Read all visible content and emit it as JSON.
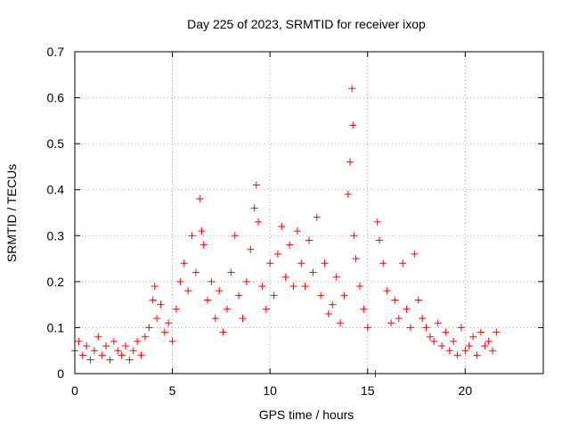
{
  "chart_data": {
    "type": "scatter",
    "title": "Day 225 of 2023, SRMTID for receiver ixop",
    "xlabel": "GPS time / hours",
    "ylabel": "SRMTID / TECUs",
    "xlim": [
      0,
      24
    ],
    "ylim": [
      0,
      0.7
    ],
    "xticks": [
      0,
      5,
      10,
      15,
      20
    ],
    "yticks": [
      0,
      0.1,
      0.2,
      0.3,
      0.4,
      0.5,
      0.6,
      0.7
    ],
    "marker": "+",
    "grid": true,
    "colors": {
      "points": "#ff0000",
      "grid": "#a0a0a0",
      "axes": "#000000"
    },
    "series": [
      {
        "name": "SRMTID",
        "x": [
          0.0,
          0.2,
          0.4,
          0.6,
          0.8,
          1.0,
          1.2,
          1.4,
          1.6,
          1.8,
          2.0,
          2.2,
          2.4,
          2.6,
          2.8,
          3.0,
          3.2,
          3.4,
          3.6,
          3.8,
          4.0,
          4.1,
          4.2,
          4.4,
          4.6,
          4.8,
          5.0,
          5.2,
          5.4,
          5.6,
          5.8,
          6.0,
          6.2,
          6.4,
          6.5,
          6.6,
          6.8,
          7.0,
          7.2,
          7.4,
          7.6,
          7.8,
          8.0,
          8.2,
          8.4,
          8.6,
          8.8,
          9.0,
          9.2,
          9.3,
          9.4,
          9.6,
          9.8,
          10.0,
          10.2,
          10.4,
          10.6,
          10.8,
          11.0,
          11.2,
          11.4,
          11.6,
          11.8,
          12.0,
          12.2,
          12.4,
          12.6,
          12.8,
          13.0,
          13.2,
          13.4,
          13.6,
          13.8,
          14.0,
          14.1,
          14.2,
          14.25,
          14.3,
          14.4,
          14.6,
          14.8,
          15.0,
          15.4,
          15.5,
          15.6,
          15.8,
          16.0,
          16.2,
          16.4,
          16.6,
          16.8,
          17.0,
          17.2,
          17.4,
          17.6,
          17.8,
          18.0,
          18.2,
          18.4,
          18.6,
          18.8,
          19.0,
          19.2,
          19.4,
          19.6,
          19.8,
          20.0,
          20.2,
          20.4,
          20.6,
          20.8,
          21.0,
          21.2,
          21.4,
          21.6
        ],
        "y": [
          0.05,
          0.07,
          0.04,
          0.06,
          0.03,
          0.05,
          0.08,
          0.04,
          0.06,
          0.03,
          0.07,
          0.05,
          0.04,
          0.06,
          0.03,
          0.05,
          0.07,
          0.04,
          0.08,
          0.1,
          0.16,
          0.19,
          0.12,
          0.15,
          0.09,
          0.11,
          0.07,
          0.14,
          0.2,
          0.24,
          0.18,
          0.3,
          0.22,
          0.38,
          0.31,
          0.28,
          0.16,
          0.2,
          0.12,
          0.18,
          0.09,
          0.14,
          0.22,
          0.3,
          0.17,
          0.12,
          0.2,
          0.27,
          0.36,
          0.41,
          0.33,
          0.19,
          0.14,
          0.24,
          0.17,
          0.26,
          0.32,
          0.21,
          0.28,
          0.19,
          0.31,
          0.24,
          0.19,
          0.29,
          0.22,
          0.34,
          0.17,
          0.24,
          0.13,
          0.15,
          0.21,
          0.11,
          0.17,
          0.39,
          0.46,
          0.62,
          0.54,
          0.3,
          0.25,
          0.19,
          0.14,
          0.1,
          0.0,
          0.33,
          0.29,
          0.24,
          0.18,
          0.11,
          0.16,
          0.12,
          0.24,
          0.14,
          0.1,
          0.26,
          0.16,
          0.12,
          0.1,
          0.08,
          0.07,
          0.11,
          0.06,
          0.09,
          0.05,
          0.07,
          0.04,
          0.1,
          0.05,
          0.06,
          0.08,
          0.04,
          0.09,
          0.06,
          0.07,
          0.05,
          0.09
        ]
      }
    ]
  }
}
